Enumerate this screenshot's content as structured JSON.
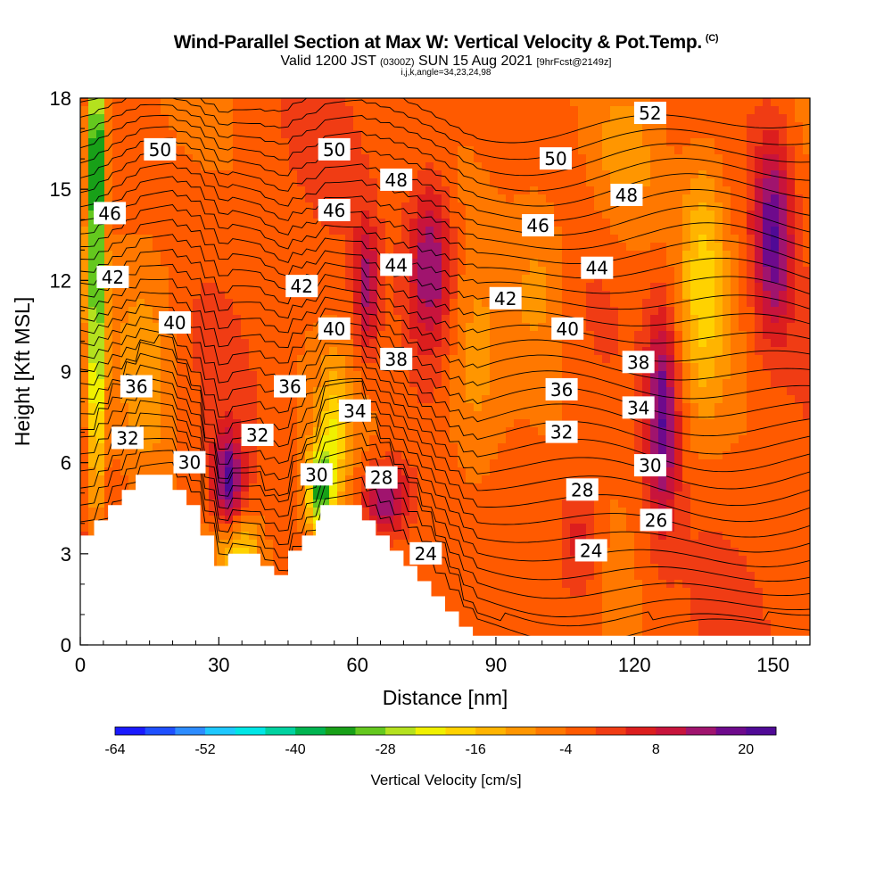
{
  "header": {
    "title": "Wind-Parallel Section at Max W: Vertical Velocity & Pot.Temp.",
    "copyright": "(C)",
    "valid_prefix": "Valid 1200 JST",
    "valid_utc": "(0300Z)",
    "valid_date": "SUN 15 Aug 2021",
    "forecast": "[9hrFcst@2149z]",
    "grid_info": "i,j,k,angle=34,23,24,98"
  },
  "chart_data": {
    "type": "heatmap",
    "xlabel": "Distance [nm]",
    "ylabel": "Height [Kft MSL]",
    "xlim": [
      0,
      158
    ],
    "ylim": [
      0,
      18
    ],
    "xticks": [
      0,
      30,
      60,
      90,
      120,
      150
    ],
    "yticks": [
      0,
      3,
      6,
      9,
      12,
      15,
      18
    ],
    "grid": false,
    "colorbar": {
      "title": "Vertical Velocity [cm/s]",
      "min": -64,
      "max": 24,
      "step": 4,
      "tick_values": [
        -64,
        -52,
        -40,
        -28,
        -16,
        -4,
        8,
        20
      ],
      "colors": [
        "#1a1aff",
        "#1f50ff",
        "#2d8cff",
        "#1ec8ff",
        "#00e6e6",
        "#00d2a0",
        "#00b450",
        "#18a018",
        "#64c81e",
        "#b4e11e",
        "#f0f000",
        "#ffd200",
        "#ffb400",
        "#ff9600",
        "#ff7800",
        "#ff5a00",
        "#f03c14",
        "#dc1e1e",
        "#c8143c",
        "#a0146e",
        "#6e0a8c",
        "#500a96"
      ]
    },
    "terrain_kft": [
      [
        0,
        3.6
      ],
      [
        3,
        3.6
      ],
      [
        3,
        4.1
      ],
      [
        6,
        4.1
      ],
      [
        6,
        4.6
      ],
      [
        9,
        4.6
      ],
      [
        9,
        5.1
      ],
      [
        12,
        5.1
      ],
      [
        12,
        5.6
      ],
      [
        20,
        5.6
      ],
      [
        20,
        5.1
      ],
      [
        23,
        5.1
      ],
      [
        23,
        4.6
      ],
      [
        26,
        4.6
      ],
      [
        26,
        3.6
      ],
      [
        29,
        3.6
      ],
      [
        29,
        2.6
      ],
      [
        32,
        2.6
      ],
      [
        32,
        3.0
      ],
      [
        39,
        3.0
      ],
      [
        39,
        2.6
      ],
      [
        42,
        2.6
      ],
      [
        42,
        2.3
      ],
      [
        45,
        2.3
      ],
      [
        45,
        3.1
      ],
      [
        48,
        3.1
      ],
      [
        48,
        3.6
      ],
      [
        51,
        3.6
      ],
      [
        51,
        4.1
      ],
      [
        52,
        4.1
      ],
      [
        52,
        4.6
      ],
      [
        61,
        4.6
      ],
      [
        61,
        4.1
      ],
      [
        64,
        4.1
      ],
      [
        64,
        3.6
      ],
      [
        67,
        3.6
      ],
      [
        67,
        3.1
      ],
      [
        70,
        3.1
      ],
      [
        70,
        2.6
      ],
      [
        73,
        2.6
      ],
      [
        73,
        2.1
      ],
      [
        76,
        2.1
      ],
      [
        76,
        1.6
      ],
      [
        79,
        1.6
      ],
      [
        79,
        1.1
      ],
      [
        82,
        1.1
      ],
      [
        82,
        0.6
      ],
      [
        85,
        0.6
      ],
      [
        85,
        0.3
      ],
      [
        158,
        0.3
      ]
    ],
    "w_features": [
      {
        "x": 3.5,
        "y": 12.5,
        "sx": 1.2,
        "sy": 5.5,
        "w": -30
      },
      {
        "x": 3.5,
        "y": 16.5,
        "sx": 1.4,
        "sy": 1.8,
        "w": -18
      },
      {
        "x": 32,
        "y": 5.3,
        "sx": 2.2,
        "sy": 1.2,
        "w": 22
      },
      {
        "x": 34,
        "y": 3.2,
        "sx": 3.5,
        "sy": 0.8,
        "w": -16
      },
      {
        "x": 52,
        "y": 5.0,
        "sx": 2.2,
        "sy": 1.0,
        "w": -30
      },
      {
        "x": 55,
        "y": 7.2,
        "sx": 2.5,
        "sy": 1.5,
        "w": -14
      },
      {
        "x": 66,
        "y": 4.8,
        "sx": 3.5,
        "sy": 0.8,
        "w": 20
      },
      {
        "x": 76,
        "y": 12.5,
        "sx": 3.5,
        "sy": 2.0,
        "w": 20
      },
      {
        "x": 62,
        "y": 11.8,
        "sx": 1.8,
        "sy": 1.5,
        "w": 16
      },
      {
        "x": 126,
        "y": 7.5,
        "sx": 2.5,
        "sy": 2.5,
        "w": 22
      },
      {
        "x": 150,
        "y": 13.5,
        "sx": 3.0,
        "sy": 2.3,
        "w": 22
      },
      {
        "x": 108,
        "y": 3.5,
        "sx": 3.0,
        "sy": 1.5,
        "w": 10
      },
      {
        "x": 135,
        "y": 12.0,
        "sx": 3.5,
        "sy": 3.0,
        "w": -14
      },
      {
        "x": 85,
        "y": 8.0,
        "sx": 5.0,
        "sy": 3.0,
        "w": -8
      },
      {
        "x": 100,
        "y": 12.0,
        "sx": 5.0,
        "sy": 2.5,
        "w": -8
      },
      {
        "x": 15,
        "y": 9.0,
        "sx": 5.0,
        "sy": 3.0,
        "w": -8
      },
      {
        "x": 118,
        "y": 16.0,
        "sx": 6.0,
        "sy": 2.0,
        "w": -8
      }
    ],
    "theta_labels": [
      {
        "text": "50",
        "x": 27,
        "y": 16.3
      },
      {
        "text": "50",
        "x": 86,
        "y": 16.3
      },
      {
        "text": "48",
        "x": 107,
        "y": 15.3
      },
      {
        "text": "50",
        "x": 161,
        "y": 16.0
      },
      {
        "text": "52",
        "x": 193,
        "y": 17.5
      },
      {
        "text": "48",
        "x": 185,
        "y": 14.8
      },
      {
        "text": "46",
        "x": 10,
        "y": 14.2
      },
      {
        "text": "46",
        "x": 86,
        "y": 14.3
      },
      {
        "text": "46",
        "x": 155,
        "y": 13.8
      },
      {
        "text": "44",
        "x": 107,
        "y": 12.5
      },
      {
        "text": "44",
        "x": 175,
        "y": 12.4
      },
      {
        "text": "42",
        "x": 11,
        "y": 12.1
      },
      {
        "text": "42",
        "x": 75,
        "y": 11.8
      },
      {
        "text": "42",
        "x": 144,
        "y": 11.4
      },
      {
        "text": "40",
        "x": 32,
        "y": 10.6
      },
      {
        "text": "40",
        "x": 86,
        "y": 10.4
      },
      {
        "text": "40",
        "x": 165,
        "y": 10.4
      },
      {
        "text": "38",
        "x": 107,
        "y": 9.4
      },
      {
        "text": "38",
        "x": 189,
        "y": 9.3
      },
      {
        "text": "36",
        "x": 19,
        "y": 8.5
      },
      {
        "text": "36",
        "x": 71,
        "y": 8.5
      },
      {
        "text": "36",
        "x": 163,
        "y": 8.4
      },
      {
        "text": "34",
        "x": 93,
        "y": 7.7
      },
      {
        "text": "34",
        "x": 189,
        "y": 7.8
      },
      {
        "text": "32",
        "x": 16,
        "y": 6.8
      },
      {
        "text": "32",
        "x": 60,
        "y": 6.9
      },
      {
        "text": "32",
        "x": 163,
        "y": 7.0
      },
      {
        "text": "30",
        "x": 37,
        "y": 6.0
      },
      {
        "text": "30",
        "x": 80,
        "y": 5.6
      },
      {
        "text": "30",
        "x": 193,
        "y": 5.9
      },
      {
        "text": "28",
        "x": 102,
        "y": 5.5
      },
      {
        "text": "28",
        "x": 170,
        "y": 5.1
      },
      {
        "text": "26",
        "x": 195,
        "y": 4.1
      },
      {
        "text": "24",
        "x": 117,
        "y": 3.0
      },
      {
        "text": "24",
        "x": 173,
        "y": 3.1
      }
    ]
  }
}
